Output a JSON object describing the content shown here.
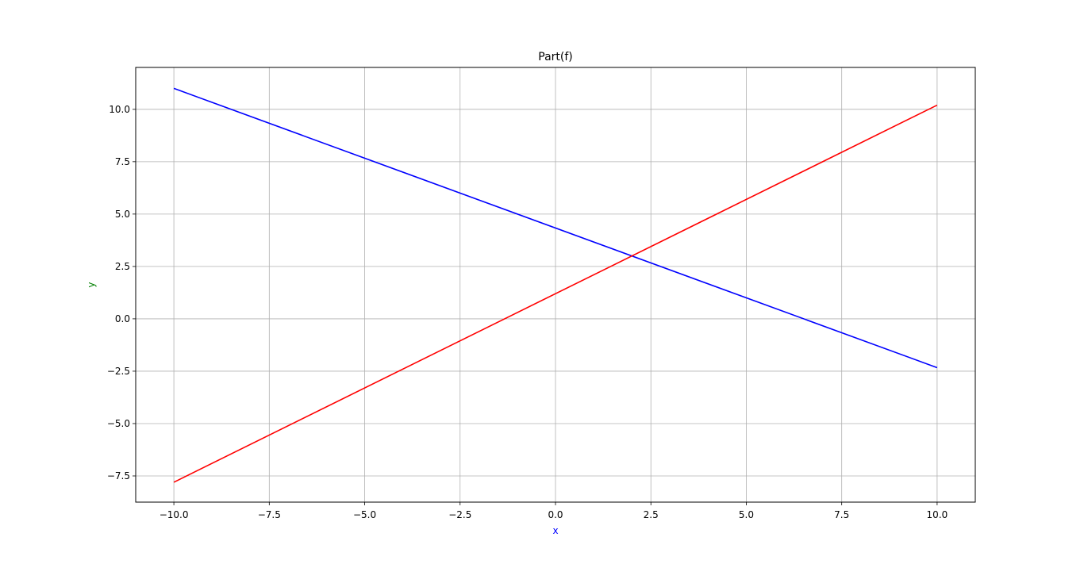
{
  "chart_data": {
    "type": "line",
    "title": "Part(f)",
    "xlabel": "x",
    "ylabel": "y",
    "xlabel_color": "#0000ff",
    "ylabel_color": "#008000",
    "xlim": [
      -11,
      11
    ],
    "ylim": [
      -8.75,
      12
    ],
    "grid": true,
    "xticks": [
      -10.0,
      -7.5,
      -5.0,
      -2.5,
      0.0,
      2.5,
      5.0,
      7.5,
      10.0
    ],
    "xtick_labels": [
      "−10.0",
      "−7.5",
      "−5.0",
      "−2.5",
      "0.0",
      "2.5",
      "5.0",
      "7.5",
      "10.0"
    ],
    "yticks": [
      -7.5,
      -5.0,
      -2.5,
      0.0,
      2.5,
      5.0,
      7.5,
      10.0
    ],
    "ytick_labels": [
      "−7.5",
      "−5.0",
      "−2.5",
      "0.0",
      "2.5",
      "5.0",
      "7.5",
      "10.0"
    ],
    "series": [
      {
        "color": "#0000ff",
        "x": [
          -10,
          10
        ],
        "y": [
          11.0,
          -2.33
        ]
      },
      {
        "color": "#ff0000",
        "x": [
          -10,
          10
        ],
        "y": [
          -7.8,
          10.2
        ]
      }
    ]
  }
}
